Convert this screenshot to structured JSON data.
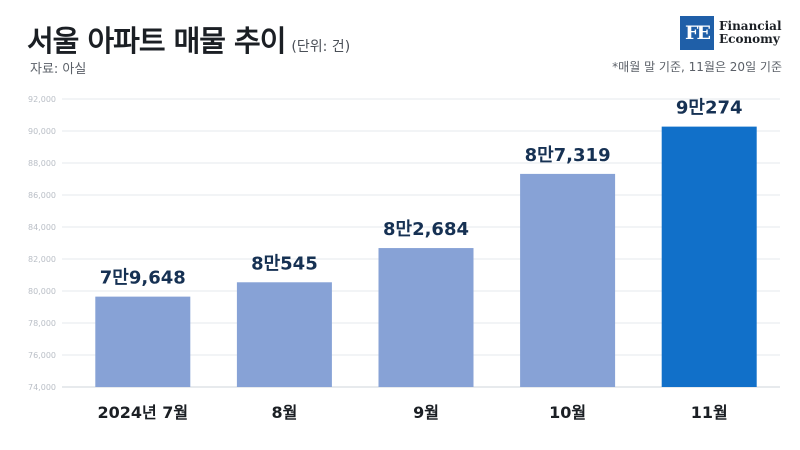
{
  "header": {
    "title": "서울 아파트 매물 추이",
    "unit": "(단위: 건)",
    "source": "자료: 아실",
    "note": "*매월 말 기준, 11월은 20일 기준"
  },
  "logo": {
    "mark": "FE",
    "line1": "Financial",
    "line2": "Economy",
    "color": "#1f5fa8"
  },
  "chart_data": {
    "type": "bar",
    "categories": [
      "2024년 7월",
      "8월",
      "9월",
      "10월",
      "11월"
    ],
    "values": [
      79648,
      80545,
      82684,
      87319,
      90274
    ],
    "data_labels": [
      "7만9,648",
      "8만545",
      "8만2,684",
      "8만7,319",
      "9만274"
    ],
    "ylim": [
      74000,
      92000
    ],
    "yticks": [
      "74,000",
      "76,000",
      "78,000",
      "80,000",
      "82,000",
      "84,000",
      "86,000",
      "88,000",
      "90,000",
      "92,000"
    ],
    "grid": true,
    "colors": [
      "#87a2d6",
      "#87a2d6",
      "#87a2d6",
      "#87a2d6",
      "#1170c9"
    ]
  }
}
